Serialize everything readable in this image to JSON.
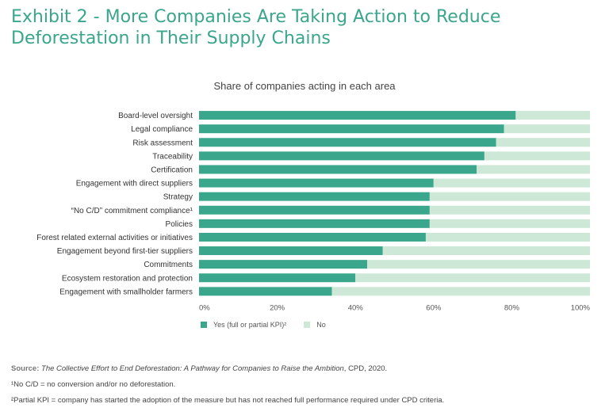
{
  "title": "Exhibit 2 - More Companies Are Taking Action to Reduce Deforestation in Their Supply Chains",
  "chart_data": {
    "type": "bar",
    "orientation": "horizontal",
    "stacked": true,
    "title": "Share of companies acting in each area",
    "categories": [
      "Board-level oversight",
      "Legal compliance",
      "Risk assessment",
      "Traceability",
      "Certification",
      "Engagement with direct suppliers",
      "Strategy",
      "“No C/D” commitment compliance¹",
      "Policies",
      "Forest related external activities or initiatives",
      "Engagement beyond first-tier suppliers",
      "Commitments",
      "Ecosystem restoration and protection",
      "Engagement with smallholder farmers"
    ],
    "series": [
      {
        "name": "Yes (full or partial KPI)²",
        "color": "#3aa68c",
        "values": [
          81,
          78,
          76,
          73,
          71,
          60,
          59,
          59,
          59,
          58,
          47,
          43,
          40,
          34
        ]
      },
      {
        "name": "No",
        "color": "#cde8d6",
        "values": [
          19,
          22,
          24,
          27,
          29,
          40,
          41,
          41,
          41,
          42,
          53,
          57,
          60,
          66
        ]
      }
    ],
    "x_ticks": [
      "0%",
      "20%",
      "40%",
      "60%",
      "80%",
      "100%"
    ],
    "xlim": [
      0,
      100
    ],
    "grid": false,
    "legend_position": "bottom-left"
  },
  "legend": {
    "yes_label": "Yes (full or partial KPI)²",
    "no_label": "No"
  },
  "footnotes": {
    "source_label": "Source:",
    "source_title": "The Collective Effort to End Deforestation: A Pathway for Companies to Raise the Ambition",
    "source_rest": ", CPD, 2020.",
    "note1": "¹No C/D = no conversion and/or no deforestation.",
    "note2": "²Partial KPI = company has started the adoption of the measure but has not reached full performance required under CPD criteria."
  }
}
